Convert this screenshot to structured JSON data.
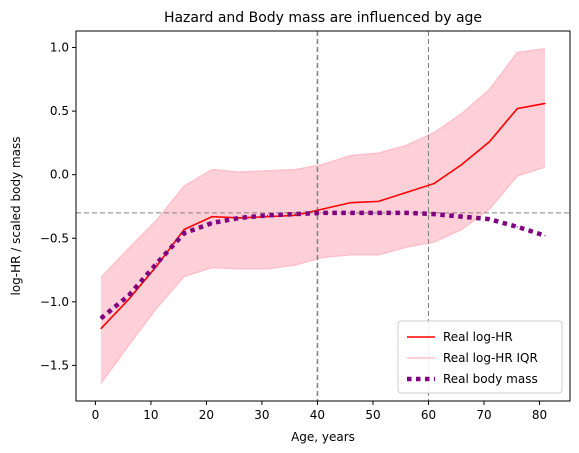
{
  "chart_data": {
    "type": "line",
    "title": "Hazard and Body mass are influenced by age",
    "xlabel": "Age, years",
    "ylabel": "log-HR / scaled body mass",
    "xlim": [
      -3.5,
      85.5
    ],
    "ylim": [
      -1.78,
      1.13
    ],
    "xticks": [
      0,
      10,
      20,
      30,
      40,
      50,
      60,
      70,
      80
    ],
    "yticks": [
      -1.5,
      -1.0,
      -0.5,
      0.0,
      0.5,
      1.0
    ],
    "ytick_labels": [
      "−1.5",
      "−1.0",
      "−0.5",
      "0.0",
      "0.5",
      "1.0"
    ],
    "grid": false,
    "legend_position": "lower right",
    "x": [
      1,
      6,
      11,
      16,
      21,
      26,
      31,
      36,
      41,
      46,
      51,
      56,
      61,
      66,
      71,
      76,
      81
    ],
    "series": [
      {
        "name": "Real log-HR",
        "color": "#ff0000",
        "style": "solid",
        "values": [
          -1.21,
          -0.98,
          -0.72,
          -0.43,
          -0.33,
          -0.34,
          -0.33,
          -0.32,
          -0.27,
          -0.22,
          -0.21,
          -0.14,
          -0.07,
          0.08,
          0.26,
          0.52,
          0.56
        ]
      },
      {
        "name": "Real log-HR IQR",
        "color": "#ffc0cb",
        "style": "band",
        "lower": [
          -1.64,
          -1.34,
          -1.05,
          -0.8,
          -0.73,
          -0.74,
          -0.74,
          -0.71,
          -0.65,
          -0.63,
          -0.63,
          -0.57,
          -0.53,
          -0.43,
          -0.27,
          -0.01,
          0.06
        ],
        "upper": [
          -0.81,
          -0.58,
          -0.36,
          -0.09,
          0.04,
          0.02,
          0.03,
          0.04,
          0.08,
          0.15,
          0.17,
          0.23,
          0.33,
          0.48,
          0.67,
          0.96,
          0.99
        ]
      },
      {
        "name": "Real body mass",
        "color": "#800080",
        "style": "dotted",
        "values": [
          -1.13,
          -0.95,
          -0.7,
          -0.46,
          -0.38,
          -0.34,
          -0.32,
          -0.31,
          -0.3,
          -0.3,
          -0.3,
          -0.3,
          -0.31,
          -0.33,
          -0.35,
          -0.41,
          -0.48
        ]
      }
    ],
    "reference_lines": [
      {
        "axis": "x",
        "value": 40,
        "color": "#808080",
        "style": "dashed",
        "width": 1.5
      },
      {
        "axis": "x",
        "value": 60,
        "color": "#808080",
        "style": "dashed",
        "width": 1.0
      },
      {
        "axis": "y",
        "value": -0.3,
        "color": "#808080",
        "style": "dashed",
        "width": 1.0
      }
    ]
  }
}
